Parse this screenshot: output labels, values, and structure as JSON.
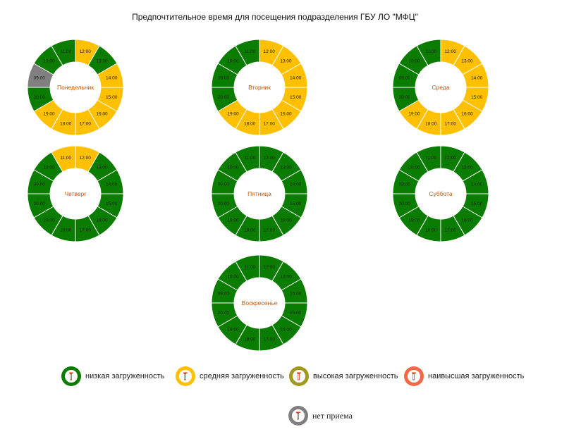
{
  "title": "Предпочтительное время для посещения подразделения ГБУ ЛО \"МФЦ\"",
  "colors": {
    "low": "#0a7d00",
    "medium": "#ffc000",
    "high": "#a09a1e",
    "highest": "#f26849",
    "closed": "#808080"
  },
  "chart_data": [
    {
      "type": "pie",
      "name": "Понедельник",
      "slots": [
        "12:00",
        "13:00",
        "14:00",
        "15:00",
        "16:00",
        "17:00",
        "18:00",
        "19:00",
        "20:00",
        "09:00",
        "10:00",
        "11:00"
      ],
      "status": [
        "medium",
        "low",
        "medium",
        "medium",
        "medium",
        "medium",
        "medium",
        "medium",
        "low",
        "closed",
        "low",
        "low"
      ]
    },
    {
      "type": "pie",
      "name": "Вторник",
      "slots": [
        "12:00",
        "13:00",
        "14:00",
        "15:00",
        "16:00",
        "17:00",
        "18:00",
        "19:00",
        "20:00",
        "09:00",
        "10:00",
        "11:00"
      ],
      "status": [
        "medium",
        "medium",
        "medium",
        "medium",
        "medium",
        "medium",
        "medium",
        "medium",
        "low",
        "low",
        "low",
        "low"
      ]
    },
    {
      "type": "pie",
      "name": "Среда",
      "slots": [
        "12:00",
        "13:00",
        "14:00",
        "15:00",
        "16:00",
        "17:00",
        "18:00",
        "19:00",
        "20:00",
        "09:00",
        "10:00",
        "11:00"
      ],
      "status": [
        "medium",
        "medium",
        "medium",
        "medium",
        "medium",
        "medium",
        "medium",
        "medium",
        "low",
        "low",
        "low",
        "low"
      ]
    },
    {
      "type": "pie",
      "name": "Четверг",
      "slots": [
        "12:00",
        "13:00",
        "14:00",
        "15:00",
        "16:00",
        "17:00",
        "18:00",
        "19:00",
        "20:00",
        "09:00",
        "10:00",
        "11:00"
      ],
      "status": [
        "medium",
        "low",
        "low",
        "low",
        "low",
        "low",
        "low",
        "low",
        "low",
        "low",
        "low",
        "medium"
      ]
    },
    {
      "type": "pie",
      "name": "Пятница",
      "slots": [
        "12:00",
        "13:00",
        "14:00",
        "15:00",
        "16:00",
        "17:00",
        "18:00",
        "19:00",
        "20:00",
        "09:00",
        "10:00",
        "11:00"
      ],
      "status": [
        "low",
        "low",
        "low",
        "low",
        "low",
        "low",
        "low",
        "low",
        "low",
        "low",
        "low",
        "low"
      ]
    },
    {
      "type": "pie",
      "name": "Суббота",
      "slots": [
        "12:00",
        "13:00",
        "14:00",
        "15:00",
        "16:00",
        "17:00",
        "18:00",
        "19:00",
        "20:00",
        "09:00",
        "10:00",
        "11:00"
      ],
      "status": [
        "low",
        "low",
        "low",
        "low",
        "low",
        "low",
        "low",
        "low",
        "low",
        "low",
        "low",
        "low"
      ]
    },
    {
      "type": "pie",
      "name": "Воскресенье",
      "slots": [
        "12:00",
        "13:00",
        "14:00",
        "15:00",
        "16:00",
        "17:00",
        "18:00",
        "19:00",
        "20:00",
        "09:00",
        "10:00",
        "11:00"
      ],
      "status": [
        "low",
        "low",
        "low",
        "low",
        "low",
        "low",
        "low",
        "low",
        "low",
        "low",
        "low",
        "low"
      ]
    }
  ],
  "legend": [
    {
      "key": "low",
      "label": "низкая загруженность"
    },
    {
      "key": "medium",
      "label": "средняя загруженность"
    },
    {
      "key": "high",
      "label": "высокая загруженность"
    },
    {
      "key": "highest",
      "label": "наивысшая загруженность"
    },
    {
      "key": "closed",
      "label": "нет приема"
    }
  ]
}
